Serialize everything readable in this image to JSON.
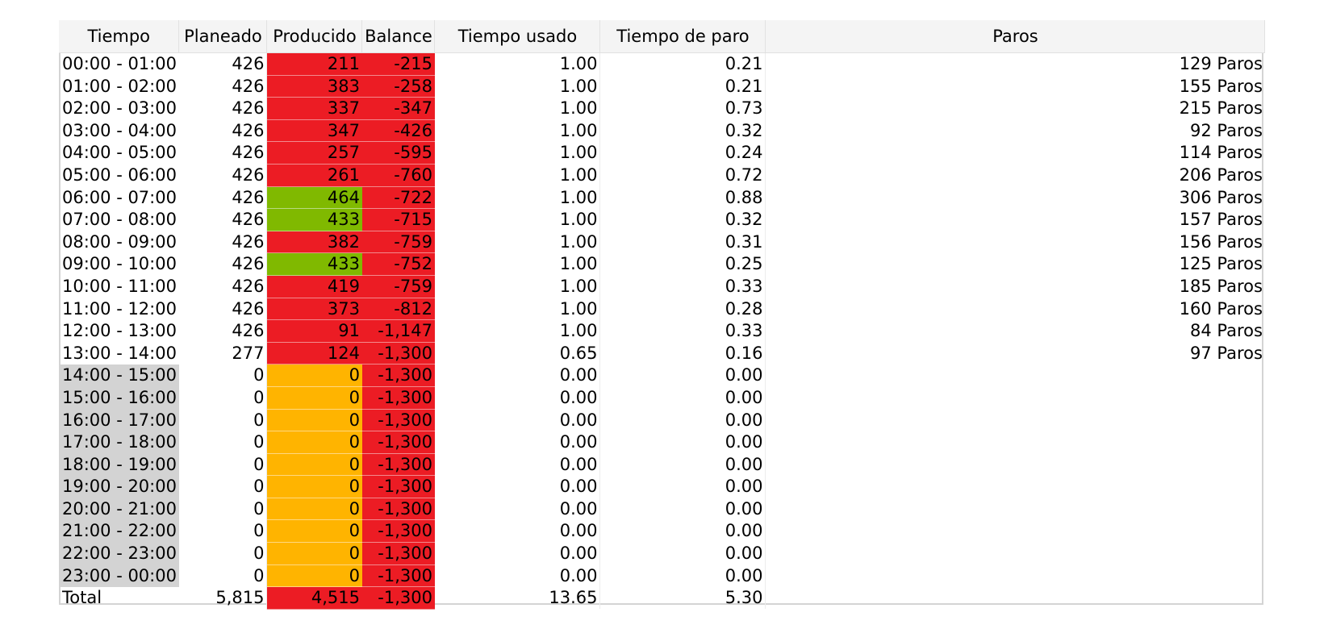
{
  "columns": {
    "tiempo": "Tiempo",
    "planeado": "Planeado",
    "producido": "Producido",
    "balance": "Balance",
    "tiempo_usado": "Tiempo usado",
    "tiempo_paro": "Tiempo de paro",
    "paros": "Paros"
  },
  "colors": {
    "below_plan": "#ec1c24",
    "above_plan": "#80b900",
    "not_started": "#ffb400",
    "future_hour": "#d3d3d3"
  },
  "rows": [
    {
      "tiempo": "00:00 - 01:00",
      "planeado": "426",
      "producido": "211",
      "balance": "-215",
      "tiempo_usado": "1.00",
      "tiempo_paro": "0.21",
      "paros": "129 Paros",
      "status": "below",
      "future": false
    },
    {
      "tiempo": "01:00 - 02:00",
      "planeado": "426",
      "producido": "383",
      "balance": "-258",
      "tiempo_usado": "1.00",
      "tiempo_paro": "0.21",
      "paros": "155 Paros",
      "status": "below",
      "future": false
    },
    {
      "tiempo": "02:00 - 03:00",
      "planeado": "426",
      "producido": "337",
      "balance": "-347",
      "tiempo_usado": "1.00",
      "tiempo_paro": "0.73",
      "paros": "215 Paros",
      "status": "below",
      "future": false
    },
    {
      "tiempo": "03:00 - 04:00",
      "planeado": "426",
      "producido": "347",
      "balance": "-426",
      "tiempo_usado": "1.00",
      "tiempo_paro": "0.32",
      "paros": "92 Paros",
      "status": "below",
      "future": false
    },
    {
      "tiempo": "04:00 - 05:00",
      "planeado": "426",
      "producido": "257",
      "balance": "-595",
      "tiempo_usado": "1.00",
      "tiempo_paro": "0.24",
      "paros": "114 Paros",
      "status": "below",
      "future": false
    },
    {
      "tiempo": "05:00 - 06:00",
      "planeado": "426",
      "producido": "261",
      "balance": "-760",
      "tiempo_usado": "1.00",
      "tiempo_paro": "0.72",
      "paros": "206 Paros",
      "status": "below",
      "future": false
    },
    {
      "tiempo": "06:00 - 07:00",
      "planeado": "426",
      "producido": "464",
      "balance": "-722",
      "tiempo_usado": "1.00",
      "tiempo_paro": "0.88",
      "paros": "306 Paros",
      "status": "above",
      "future": false
    },
    {
      "tiempo": "07:00 - 08:00",
      "planeado": "426",
      "producido": "433",
      "balance": "-715",
      "tiempo_usado": "1.00",
      "tiempo_paro": "0.32",
      "paros": "157 Paros",
      "status": "above",
      "future": false
    },
    {
      "tiempo": "08:00 - 09:00",
      "planeado": "426",
      "producido": "382",
      "balance": "-759",
      "tiempo_usado": "1.00",
      "tiempo_paro": "0.31",
      "paros": "156 Paros",
      "status": "below",
      "future": false
    },
    {
      "tiempo": "09:00 - 10:00",
      "planeado": "426",
      "producido": "433",
      "balance": "-752",
      "tiempo_usado": "1.00",
      "tiempo_paro": "0.25",
      "paros": "125 Paros",
      "status": "above",
      "future": false
    },
    {
      "tiempo": "10:00 - 11:00",
      "planeado": "426",
      "producido": "419",
      "balance": "-759",
      "tiempo_usado": "1.00",
      "tiempo_paro": "0.33",
      "paros": "185 Paros",
      "status": "below",
      "future": false
    },
    {
      "tiempo": "11:00 - 12:00",
      "planeado": "426",
      "producido": "373",
      "balance": "-812",
      "tiempo_usado": "1.00",
      "tiempo_paro": "0.28",
      "paros": "160 Paros",
      "status": "below",
      "future": false
    },
    {
      "tiempo": "12:00 - 13:00",
      "planeado": "426",
      "producido": "91",
      "balance": "-1,147",
      "tiempo_usado": "1.00",
      "tiempo_paro": "0.33",
      "paros": "84 Paros",
      "status": "below",
      "future": false
    },
    {
      "tiempo": "13:00 - 14:00",
      "planeado": "277",
      "producido": "124",
      "balance": "-1,300",
      "tiempo_usado": "0.65",
      "tiempo_paro": "0.16",
      "paros": "97 Paros",
      "status": "below",
      "future": false
    },
    {
      "tiempo": "14:00 - 15:00",
      "planeado": "0",
      "producido": "0",
      "balance": "-1,300",
      "tiempo_usado": "0.00",
      "tiempo_paro": "0.00",
      "paros": "",
      "status": "zero",
      "future": true
    },
    {
      "tiempo": "15:00 - 16:00",
      "planeado": "0",
      "producido": "0",
      "balance": "-1,300",
      "tiempo_usado": "0.00",
      "tiempo_paro": "0.00",
      "paros": "",
      "status": "zero",
      "future": true
    },
    {
      "tiempo": "16:00 - 17:00",
      "planeado": "0",
      "producido": "0",
      "balance": "-1,300",
      "tiempo_usado": "0.00",
      "tiempo_paro": "0.00",
      "paros": "",
      "status": "zero",
      "future": true
    },
    {
      "tiempo": "17:00 - 18:00",
      "planeado": "0",
      "producido": "0",
      "balance": "-1,300",
      "tiempo_usado": "0.00",
      "tiempo_paro": "0.00",
      "paros": "",
      "status": "zero",
      "future": true
    },
    {
      "tiempo": "18:00 - 19:00",
      "planeado": "0",
      "producido": "0",
      "balance": "-1,300",
      "tiempo_usado": "0.00",
      "tiempo_paro": "0.00",
      "paros": "",
      "status": "zero",
      "future": true
    },
    {
      "tiempo": "19:00 - 20:00",
      "planeado": "0",
      "producido": "0",
      "balance": "-1,300",
      "tiempo_usado": "0.00",
      "tiempo_paro": "0.00",
      "paros": "",
      "status": "zero",
      "future": true
    },
    {
      "tiempo": "20:00 - 21:00",
      "planeado": "0",
      "producido": "0",
      "balance": "-1,300",
      "tiempo_usado": "0.00",
      "tiempo_paro": "0.00",
      "paros": "",
      "status": "zero",
      "future": true
    },
    {
      "tiempo": "21:00 - 22:00",
      "planeado": "0",
      "producido": "0",
      "balance": "-1,300",
      "tiempo_usado": "0.00",
      "tiempo_paro": "0.00",
      "paros": "",
      "status": "zero",
      "future": true
    },
    {
      "tiempo": "22:00 - 23:00",
      "planeado": "0",
      "producido": "0",
      "balance": "-1,300",
      "tiempo_usado": "0.00",
      "tiempo_paro": "0.00",
      "paros": "",
      "status": "zero",
      "future": true
    },
    {
      "tiempo": "23:00 - 00:00",
      "planeado": "0",
      "producido": "0",
      "balance": "-1,300",
      "tiempo_usado": "0.00",
      "tiempo_paro": "0.00",
      "paros": "",
      "status": "zero",
      "future": true
    }
  ],
  "total": {
    "label": "Total",
    "planeado": "5,815",
    "producido": "4,515",
    "balance": "-1,300",
    "tiempo_usado": "13.65",
    "tiempo_paro": "5.30",
    "paros": ""
  }
}
